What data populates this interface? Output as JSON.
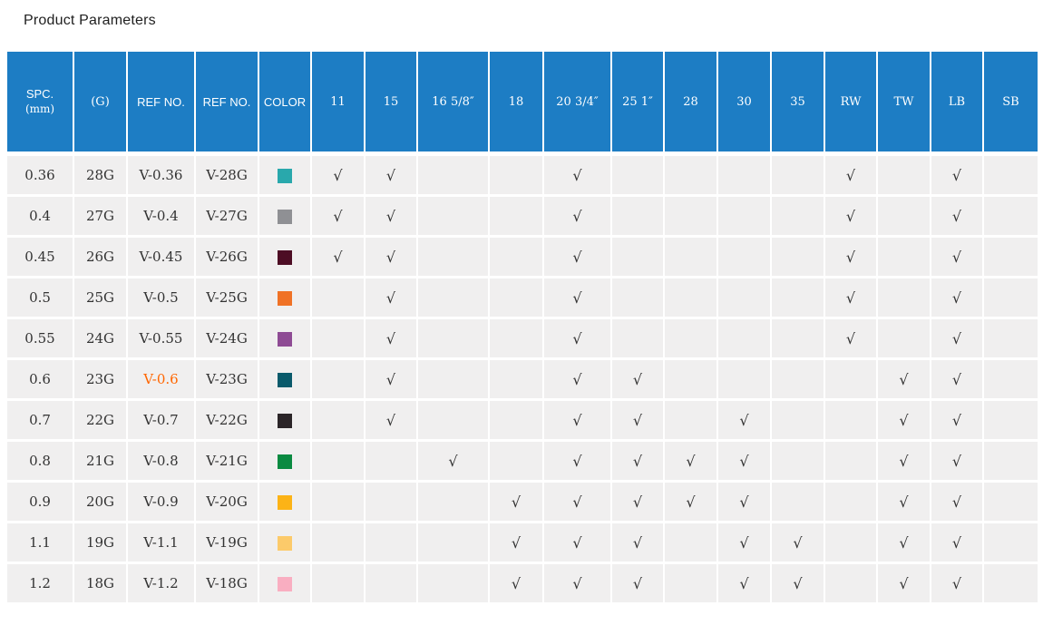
{
  "page": {
    "title": "Product Parameters"
  },
  "colors": {
    "header_bg": "#1d7dc4",
    "row_bg": "#f0efef",
    "grid": "#ffffff",
    "text": "#333333",
    "header_text": "#ffffff",
    "highlight": "#ff6600"
  },
  "check_mark": "√",
  "table": {
    "columns": [
      {
        "key": "spc",
        "label": "SPC.",
        "sublabel": "(mm)"
      },
      {
        "key": "gauge",
        "label": "(G)"
      },
      {
        "key": "ref_no_1",
        "label": "REF NO."
      },
      {
        "key": "ref_no_2",
        "label": "REF NO."
      },
      {
        "key": "color",
        "label": "COLOR"
      },
      {
        "key": "11",
        "label": "11"
      },
      {
        "key": "15",
        "label": "15"
      },
      {
        "key": "16_58",
        "label": "16 5/8″"
      },
      {
        "key": "18",
        "label": "18"
      },
      {
        "key": "20_34",
        "label": "20 3/4″"
      },
      {
        "key": "25_1",
        "label": "25 1″"
      },
      {
        "key": "28",
        "label": "28"
      },
      {
        "key": "30",
        "label": "30"
      },
      {
        "key": "35",
        "label": "35"
      },
      {
        "key": "rw",
        "label": "RW"
      },
      {
        "key": "tw",
        "label": "TW"
      },
      {
        "key": "lb",
        "label": "LB"
      },
      {
        "key": "sb",
        "label": "SB"
      }
    ],
    "rows": [
      {
        "spc": "0.36",
        "gauge": "28G",
        "ref_no_1": "V-0.36",
        "ref_no_2": "V-28G",
        "swatch_color": "#29a8ac",
        "ref_no_1_highlighted": false,
        "checks": [
          "11",
          "15",
          "20_34",
          "rw",
          "lb"
        ]
      },
      {
        "spc": "0.4",
        "gauge": "27G",
        "ref_no_1": "V-0.4",
        "ref_no_2": "V-27G",
        "swatch_color": "#8f9094",
        "ref_no_1_highlighted": false,
        "checks": [
          "11",
          "15",
          "20_34",
          "rw",
          "lb"
        ]
      },
      {
        "spc": "0.45",
        "gauge": "26G",
        "ref_no_1": "V-0.45",
        "ref_no_2": "V-26G",
        "swatch_color": "#4d0d24",
        "ref_no_1_highlighted": false,
        "checks": [
          "11",
          "15",
          "20_34",
          "rw",
          "lb"
        ]
      },
      {
        "spc": "0.5",
        "gauge": "25G",
        "ref_no_1": "V-0.5",
        "ref_no_2": "V-25G",
        "swatch_color": "#f07226",
        "ref_no_1_highlighted": false,
        "checks": [
          "15",
          "20_34",
          "rw",
          "lb"
        ]
      },
      {
        "spc": "0.55",
        "gauge": "24G",
        "ref_no_1": "V-0.55",
        "ref_no_2": "V-24G",
        "swatch_color": "#8e4b94",
        "ref_no_1_highlighted": false,
        "checks": [
          "15",
          "20_34",
          "rw",
          "lb"
        ]
      },
      {
        "spc": "0.6",
        "gauge": "23G",
        "ref_no_1": "V-0.6",
        "ref_no_2": "V-23G",
        "swatch_color": "#0a5a6b",
        "ref_no_1_highlighted": true,
        "checks": [
          "15",
          "20_34",
          "25_1",
          "tw",
          "lb"
        ]
      },
      {
        "spc": "0.7",
        "gauge": "22G",
        "ref_no_1": "V-0.7",
        "ref_no_2": "V-22G",
        "swatch_color": "#2b2528",
        "ref_no_1_highlighted": false,
        "checks": [
          "15",
          "20_34",
          "25_1",
          "30",
          "tw",
          "lb"
        ]
      },
      {
        "spc": "0.8",
        "gauge": "21G",
        "ref_no_1": "V-0.8",
        "ref_no_2": "V-21G",
        "swatch_color": "#0a8a41",
        "ref_no_1_highlighted": false,
        "checks": [
          "16_58",
          "20_34",
          "25_1",
          "28",
          "30",
          "tw",
          "lb"
        ]
      },
      {
        "spc": "0.9",
        "gauge": "20G",
        "ref_no_1": "V-0.9",
        "ref_no_2": "V-20G",
        "swatch_color": "#fcb316",
        "ref_no_1_highlighted": false,
        "checks": [
          "18",
          "20_34",
          "25_1",
          "28",
          "30",
          "tw",
          "lb"
        ]
      },
      {
        "spc": "1.1",
        "gauge": "19G",
        "ref_no_1": "V-1.1",
        "ref_no_2": "V-19G",
        "swatch_color": "#fcca6a",
        "ref_no_1_highlighted": false,
        "checks": [
          "18",
          "20_34",
          "25_1",
          "30",
          "35",
          "tw",
          "lb"
        ]
      },
      {
        "spc": "1.2",
        "gauge": "18G",
        "ref_no_1": "V-1.2",
        "ref_no_2": "V-18G",
        "swatch_color": "#f9aec1",
        "ref_no_1_highlighted": false,
        "checks": [
          "18",
          "20_34",
          "25_1",
          "30",
          "35",
          "tw",
          "lb"
        ]
      }
    ]
  }
}
